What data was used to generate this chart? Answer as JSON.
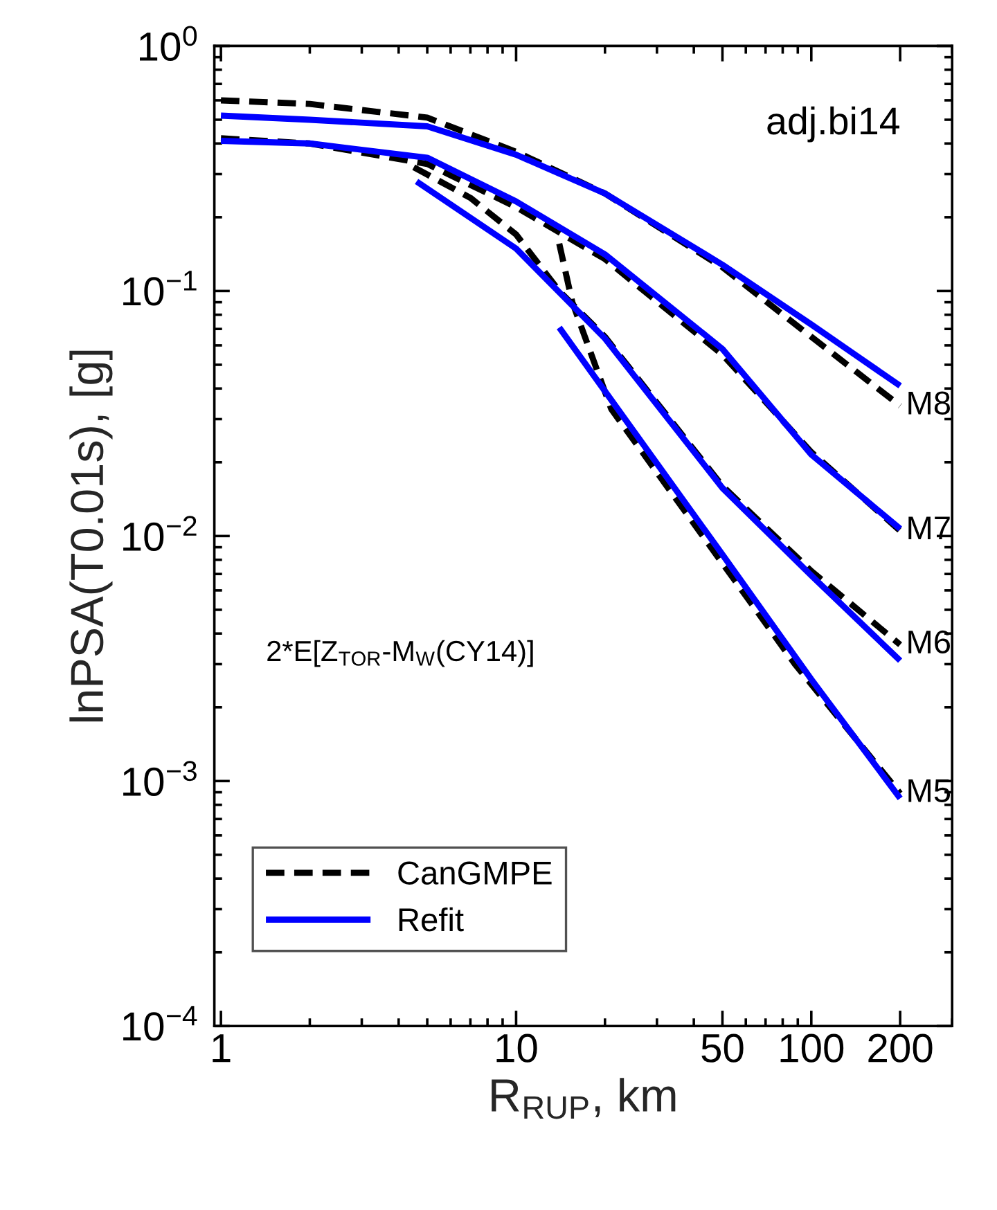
{
  "chart_data": {
    "type": "line",
    "xlabel": "R$_{RUP}$, km",
    "ylabel": "lnPSA(T0.01s), [g]",
    "log": "xy",
    "xlim": [
      0.95,
      300
    ],
    "ylim": [
      0.0001,
      1
    ],
    "xticks": [
      1,
      10,
      50,
      100,
      200
    ],
    "yticks": [
      {
        "value": 0.0001,
        "label": "10$^{−4}$"
      },
      {
        "value": 0.001,
        "label": "10$^{−3}$"
      },
      {
        "value": 0.01,
        "label": "10$^{−2}$"
      },
      {
        "value": 0.1,
        "label": "10$^{−1}$"
      },
      {
        "value": 1,
        "label": "10$^{0}$"
      }
    ],
    "grid": false,
    "legend": "bottom left",
    "marker": "none",
    "series": [
      {
        "name": "CanGMPE",
        "color": "#000000",
        "line_style": "dashed",
        "x": [
          1,
          2,
          5,
          10,
          20,
          50,
          100,
          200
        ],
        "values": [
          0.6,
          0.58,
          0.51,
          0.37,
          0.25,
          0.125,
          0.065,
          0.034
        ]
      },
      {
        "color": "#000000",
        "line_style": "dashed",
        "x": [
          1,
          2,
          5,
          10,
          20,
          50,
          100,
          200
        ],
        "values": [
          0.42,
          0.4,
          0.33,
          0.22,
          0.135,
          0.055,
          0.022,
          0.0105
        ]
      },
      {
        "color": "#000000",
        "line_style": "dashed",
        "x": [
          4.5,
          7,
          10,
          14,
          20,
          50,
          100,
          200
        ],
        "values": [
          0.32,
          0.24,
          0.17,
          0.1,
          0.065,
          0.016,
          0.0072,
          0.0036
        ]
      },
      {
        "color": "#000000",
        "line_style": "dashed",
        "x": [
          14,
          15.5,
          21,
          55,
          88,
          200
        ],
        "values": [
          0.156,
          0.09,
          0.033,
          0.0066,
          0.003,
          0.00089
        ]
      },
      {
        "name": "Refit",
        "color": "#0000ff",
        "line_style": "solid",
        "x": [
          1,
          2,
          5,
          10,
          20,
          50,
          100,
          200
        ],
        "values": [
          0.52,
          0.5,
          0.47,
          0.36,
          0.25,
          0.128,
          0.073,
          0.041
        ]
      },
      {
        "color": "#0000ff",
        "line_style": "solid",
        "x": [
          1,
          2,
          5,
          10,
          20,
          50,
          100,
          200
        ],
        "values": [
          0.41,
          0.4,
          0.35,
          0.232,
          0.141,
          0.058,
          0.0215,
          0.0107
        ]
      },
      {
        "color": "#0000ff",
        "line_style": "solid",
        "x": [
          4.6,
          10,
          20,
          50,
          100,
          200
        ],
        "values": [
          0.28,
          0.149,
          0.064,
          0.0157,
          0.0069,
          0.0031
        ]
      },
      {
        "color": "#0000ff",
        "line_style": "solid",
        "x": [
          14,
          20,
          50,
          100,
          200
        ],
        "values": [
          0.071,
          0.039,
          0.0084,
          0.0026,
          0.00085
        ]
      }
    ],
    "annotations": [
      "adj.bi14",
      "2*E[Z$_{TOR}$-M$_{W}$(CY14)]",
      "M8",
      "M7",
      "M6",
      "M5"
    ]
  }
}
